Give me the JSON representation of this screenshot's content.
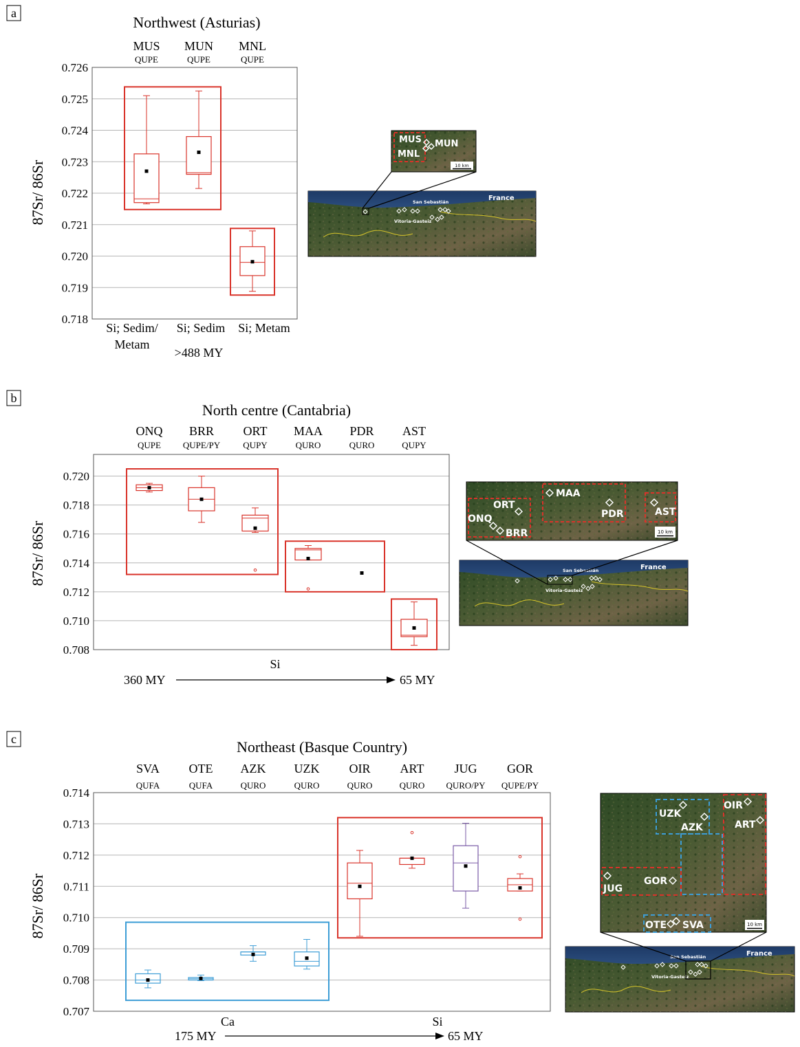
{
  "chart_data": [
    {
      "type": "box",
      "panel": "a",
      "title": "Northwest (Asturias)",
      "ylabel": "87Sr/ 86Sr",
      "ylim": [
        0.718,
        0.726
      ],
      "yticks": [
        "0.718",
        "0.719",
        "0.720",
        "0.721",
        "0.722",
        "0.723",
        "0.724",
        "0.725",
        "0.726"
      ],
      "categories": [
        "MUS",
        "MUN",
        "MNL"
      ],
      "subcodes": [
        "QUPE",
        "QUPE",
        "QUPE"
      ],
      "boxes": [
        {
          "label": "MUS",
          "min": 0.72166,
          "q1": 0.7217,
          "median": 0.72182,
          "q3": 0.72325,
          "max": 0.7251,
          "mean": 0.7227,
          "outliers": [],
          "color": "#d9332a"
        },
        {
          "label": "MUN",
          "min": 0.72215,
          "q1": 0.7226,
          "median": 0.72265,
          "q3": 0.7238,
          "max": 0.72525,
          "mean": 0.7233,
          "outliers": [],
          "color": "#d9332a"
        },
        {
          "label": "MNL",
          "min": 0.71888,
          "q1": 0.71938,
          "median": 0.7198,
          "q3": 0.7203,
          "max": 0.7208,
          "mean": 0.71982,
          "outliers": [],
          "color": "#d9332a"
        }
      ],
      "groups": [
        {
          "from": 0,
          "to": 1,
          "ymin": 0.72148,
          "ymax": 0.72538,
          "color": "#d9332a"
        },
        {
          "from": 2,
          "to": 2,
          "ymin": 0.71876,
          "ymax": 0.72088,
          "color": "#d9332a"
        }
      ],
      "xlabels": [
        {
          "text": "Si; Sedim/",
          "line2": "Metam"
        },
        {
          "text": "Si; Sedim",
          "line2": ""
        },
        {
          "text": "Si; Metam",
          "line2": ""
        }
      ],
      "age": ">488 MY"
    },
    {
      "type": "box",
      "panel": "b",
      "title": "North centre (Cantabria)",
      "ylabel": "87Sr/ 86Sr",
      "ylim": [
        0.708,
        0.7215
      ],
      "yticks": [
        "0.708",
        "0.710",
        "0.712",
        "0.714",
        "0.716",
        "0.718",
        "0.720"
      ],
      "categories": [
        "ONQ",
        "BRR",
        "ORT",
        "MAA",
        "PDR",
        "AST"
      ],
      "subcodes": [
        "QUPE",
        "QUPE/PY",
        "QUPY",
        "QURO",
        "QURO",
        "QUPY"
      ],
      "boxes": [
        {
          "label": "ONQ",
          "min": 0.7189,
          "q1": 0.719,
          "median": 0.7192,
          "q3": 0.7194,
          "max": 0.7195,
          "mean": 0.7192,
          "outliers": [],
          "color": "#d9332a"
        },
        {
          "label": "BRR",
          "min": 0.7168,
          "q1": 0.7176,
          "median": 0.7184,
          "q3": 0.7192,
          "max": 0.72,
          "mean": 0.7184,
          "outliers": [],
          "color": "#d9332a"
        },
        {
          "label": "ORT",
          "min": 0.7161,
          "q1": 0.7162,
          "median": 0.7171,
          "q3": 0.7173,
          "max": 0.7178,
          "mean": 0.7164,
          "outliers": [
            0.7135
          ],
          "color": "#d9332a"
        },
        {
          "label": "MAA",
          "min": 0.7142,
          "q1": 0.7142,
          "median": 0.7149,
          "q3": 0.715,
          "max": 0.7152,
          "mean": 0.7143,
          "outliers": [
            0.7122
          ],
          "color": "#d9332a"
        },
        {
          "label": "PDR",
          "min": null,
          "q1": null,
          "median": null,
          "q3": null,
          "max": null,
          "mean": 0.7133,
          "outliers": [],
          "color": "#d9332a"
        },
        {
          "label": "AST",
          "min": 0.7083,
          "q1": 0.7089,
          "median": 0.709,
          "q3": 0.7101,
          "max": 0.7113,
          "mean": 0.7095,
          "outliers": [],
          "color": "#d9332a"
        }
      ],
      "groups": [
        {
          "from": 0,
          "to": 2,
          "ymin": 0.7132,
          "ymax": 0.7205,
          "color": "#d9332a"
        },
        {
          "from": 3,
          "to": 4,
          "ymin": 0.712,
          "ymax": 0.7155,
          "color": "#d9332a"
        },
        {
          "from": 5,
          "to": 5,
          "ymin": 0.708,
          "ymax": 0.7115,
          "color": "#d9332a"
        }
      ],
      "xlabel": "Si",
      "age_from": "360 MY",
      "age_to": "65 MY"
    },
    {
      "type": "box",
      "panel": "c",
      "title": "Northeast (Basque Country)",
      "ylabel": "87Sr/ 86Sr",
      "ylim": [
        0.707,
        0.714
      ],
      "yticks": [
        "0.707",
        "0.708",
        "0.709",
        "0.710",
        "0.711",
        "0.712",
        "0.713",
        "0.714"
      ],
      "categories": [
        "SVA",
        "OTE",
        "AZK",
        "UZK",
        "OIR",
        "ART",
        "JUG",
        "GOR"
      ],
      "subcodes": [
        "QUFA",
        "QUFA",
        "QURO",
        "QURO",
        "QURO",
        "QURO",
        "QURO/PY",
        "QUPE/PY"
      ],
      "boxes": [
        {
          "label": "SVA",
          "min": 0.70775,
          "q1": 0.7079,
          "median": 0.708,
          "q3": 0.7082,
          "max": 0.70832,
          "mean": 0.708,
          "outliers": [],
          "color": "#3d9dd6"
        },
        {
          "label": "OTE",
          "min": 0.70798,
          "q1": 0.708,
          "median": 0.70804,
          "q3": 0.70808,
          "max": 0.70816,
          "mean": 0.70805,
          "outliers": [],
          "color": "#3d9dd6"
        },
        {
          "label": "AZK",
          "min": 0.7086,
          "q1": 0.7088,
          "median": 0.7089,
          "q3": 0.7089,
          "max": 0.7091,
          "mean": 0.70882,
          "outliers": [],
          "color": "#3d9dd6"
        },
        {
          "label": "UZK",
          "min": 0.70835,
          "q1": 0.70845,
          "median": 0.7086,
          "q3": 0.7089,
          "max": 0.7093,
          "mean": 0.7087,
          "outliers": [],
          "color": "#3d9dd6"
        },
        {
          "label": "OIR",
          "min": 0.7094,
          "q1": 0.7106,
          "median": 0.7111,
          "q3": 0.71175,
          "max": 0.71215,
          "mean": 0.711,
          "outliers": [],
          "color": "#d9332a"
        },
        {
          "label": "ART",
          "min": 0.71158,
          "q1": 0.7117,
          "median": 0.7119,
          "q3": 0.7119,
          "max": 0.7119,
          "mean": 0.7119,
          "outliers": [
            0.71272
          ],
          "color": "#d9332a"
        },
        {
          "label": "JUG",
          "min": 0.7103,
          "q1": 0.71085,
          "median": 0.71175,
          "q3": 0.7123,
          "max": 0.71302,
          "mean": 0.71165,
          "outliers": [],
          "color": "#7a5aa6"
        },
        {
          "label": "GOR",
          "min": 0.71085,
          "q1": 0.71085,
          "median": 0.71105,
          "q3": 0.71125,
          "max": 0.7114,
          "mean": 0.71095,
          "outliers": [
            0.71195,
            0.70995
          ],
          "color": "#d9332a"
        }
      ],
      "groups": [
        {
          "from": 0,
          "to": 3,
          "ymin": 0.70735,
          "ymax": 0.70985,
          "color": "#3d9dd6"
        },
        {
          "from": 4,
          "to": 7,
          "ymin": 0.70935,
          "ymax": 0.7132,
          "color": "#d9332a"
        }
      ],
      "xlabel_left": "Ca",
      "xlabel_right": "Si",
      "age_from": "175 MY",
      "age_to": "65 MY"
    }
  ],
  "panel_letters": [
    "a",
    "b",
    "c"
  ],
  "maps": {
    "a": {
      "inset_labels": [
        "MUS",
        "MUN",
        "MNL"
      ],
      "scale": "10 km",
      "overview_labels": [
        "France",
        "San Sebastián",
        "Vitoria-Gasteiz"
      ]
    },
    "b": {
      "inset_labels": [
        "MAA",
        "ORT",
        "ONQ",
        "BRR",
        "PDR",
        "AST"
      ],
      "scale": "10 km",
      "overview_labels": [
        "France",
        "San Sebastián",
        "Vitoria-Gasteiz"
      ]
    },
    "c": {
      "inset_labels": [
        "OIR",
        "UZK",
        "AZK",
        "ART",
        "GOR",
        "JUG",
        "OTE",
        "SVA"
      ],
      "scale": "10 km",
      "overview_labels": [
        "France",
        "San Sebastián",
        "Vitoria-Gasteiz"
      ]
    }
  },
  "colors": {
    "red": "#d9332a",
    "blue": "#3d9dd6",
    "purple": "#7a5aa6",
    "grid": "#b5b5b5"
  }
}
